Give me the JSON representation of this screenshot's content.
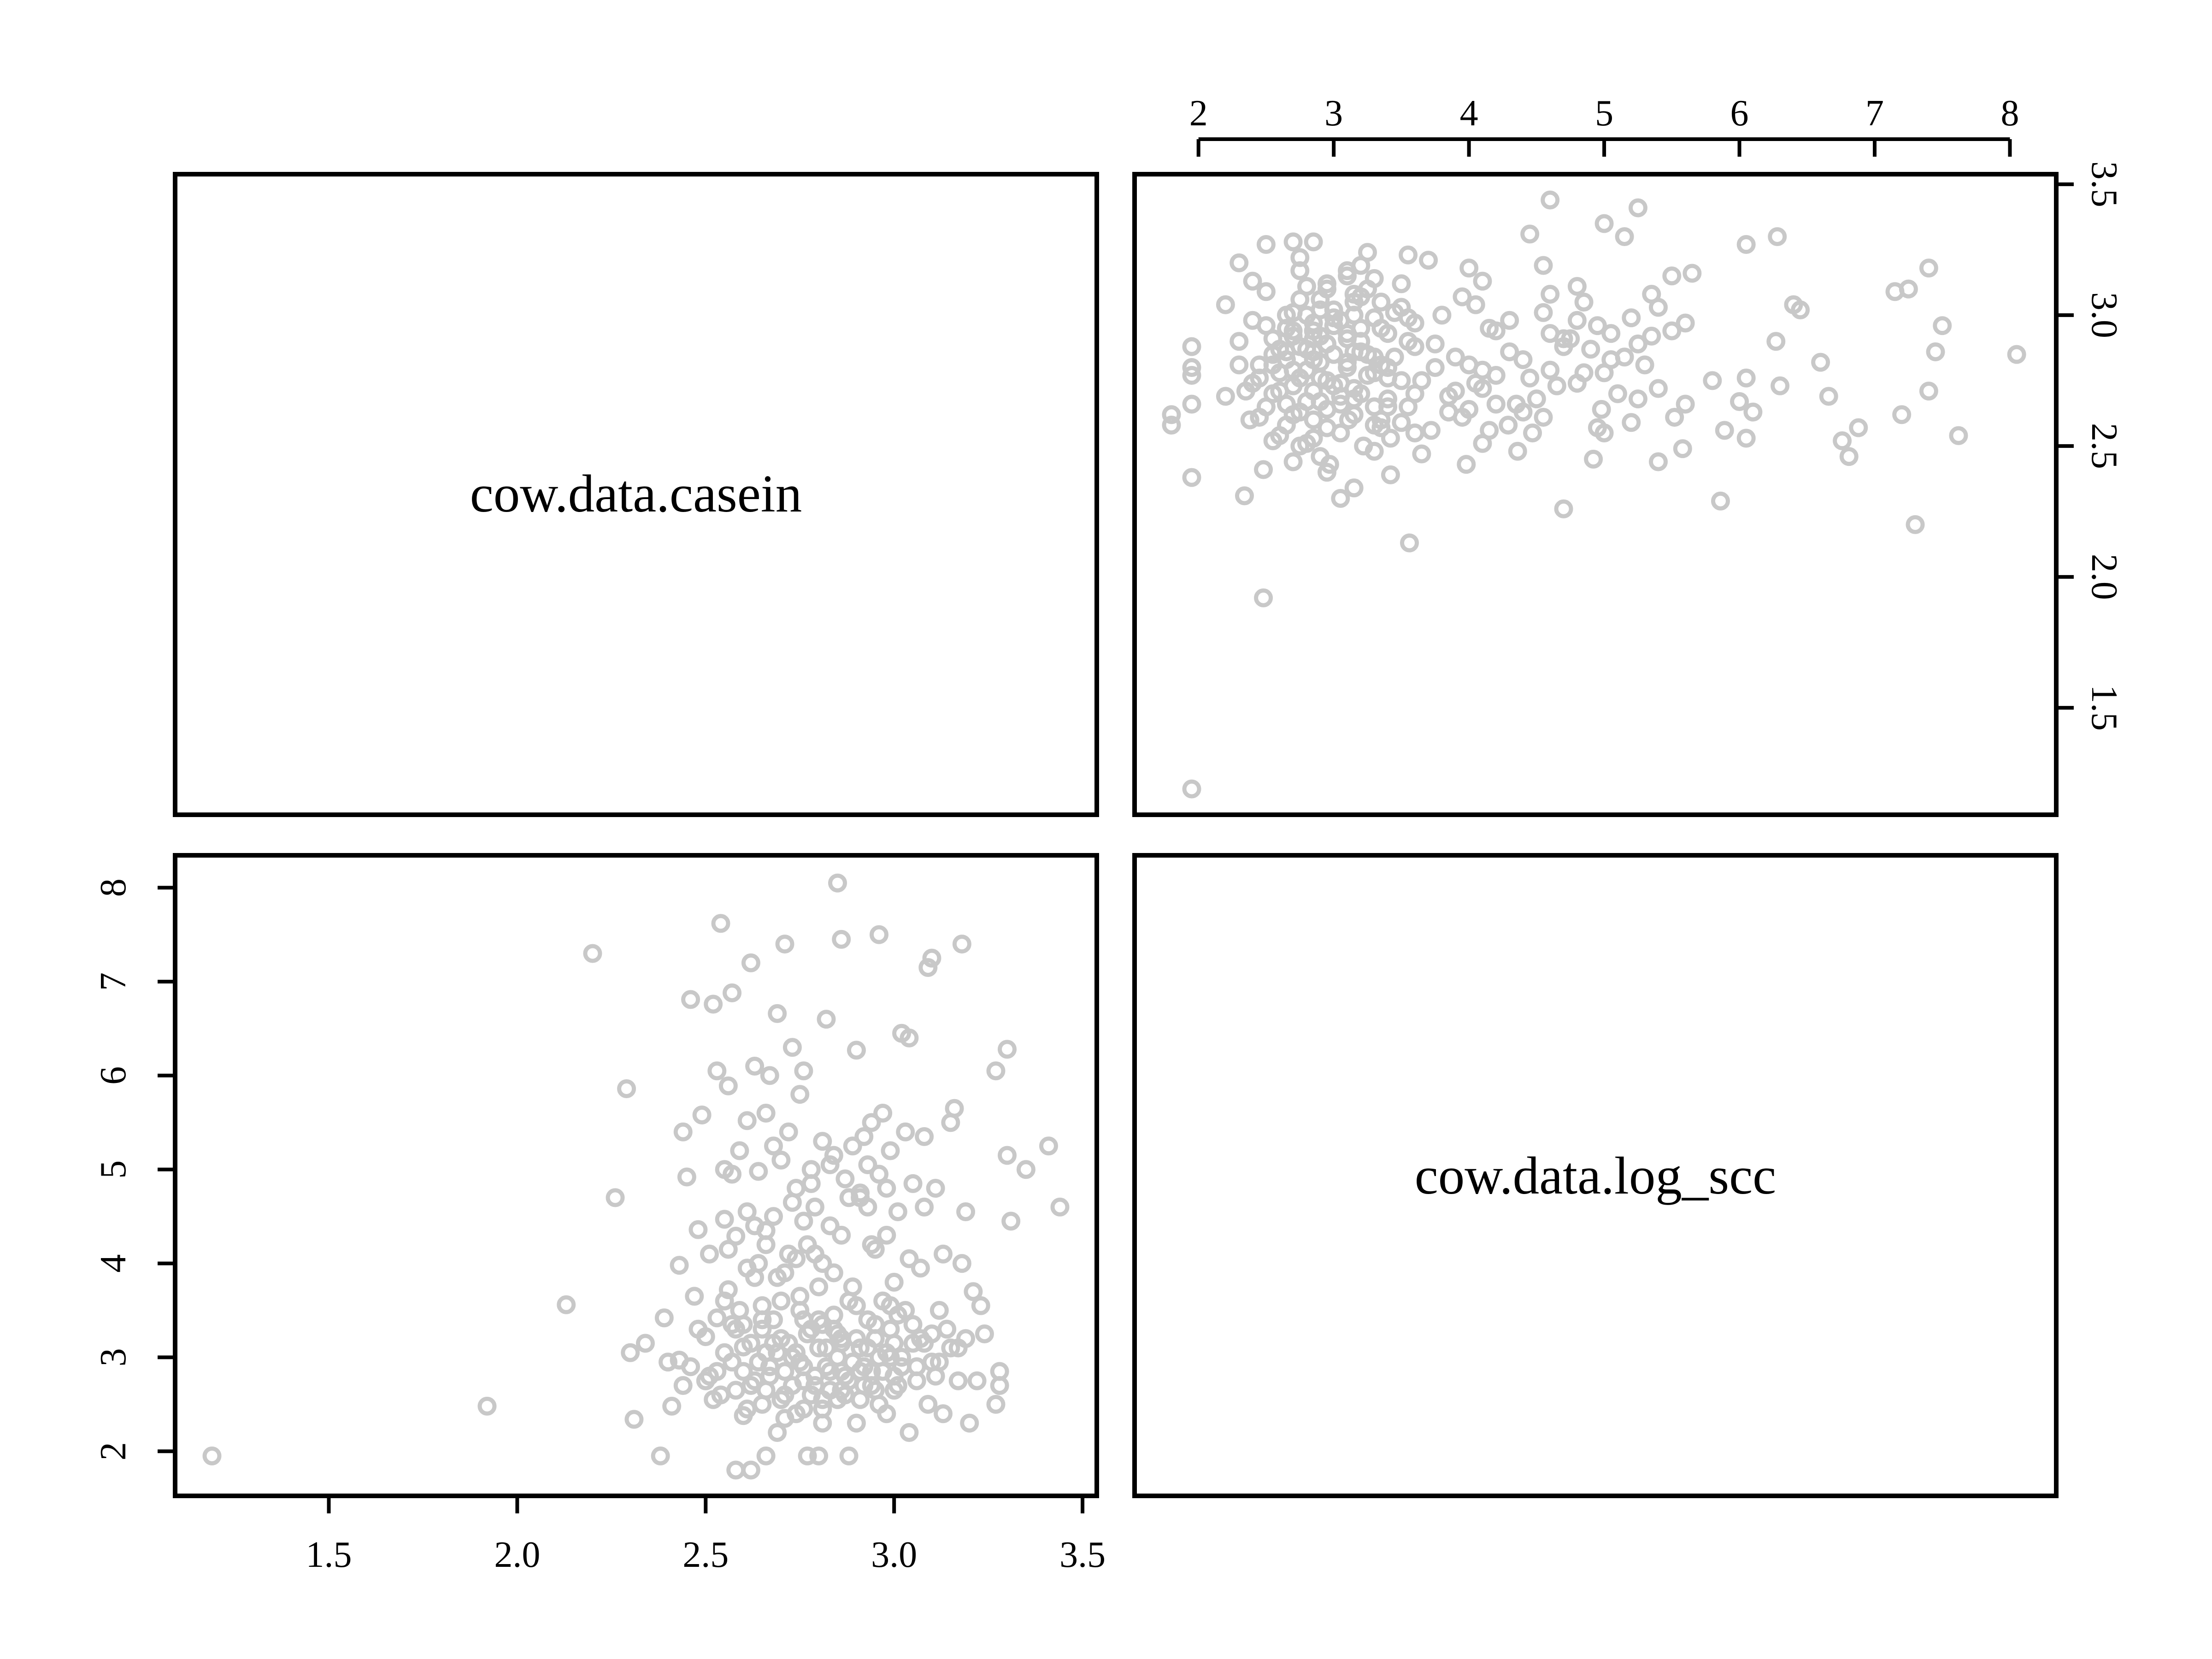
{
  "chart_data": {
    "type": "scatter",
    "variables": [
      "cow.data.casein",
      "cow.data.log_scc"
    ],
    "axis_ticks": {
      "cow.data.casein": [
        "1.5",
        "2.0",
        "2.5",
        "3.0",
        "3.5"
      ],
      "cow.data.log_scc": [
        "2",
        "3",
        "4",
        "5",
        "6",
        "7",
        "8"
      ]
    },
    "axis_ranges": {
      "cow.data.casein": [
        1.19,
        3.44
      ],
      "cow.data.log_scc": [
        1.8,
        8.07
      ]
    },
    "point_color": "#c8c8c8",
    "grid": false,
    "legend": "none",
    "points": [
      [
        1.19,
        1.95
      ],
      [
        1.92,
        2.48
      ],
      [
        2.13,
        3.56
      ],
      [
        2.2,
        7.3
      ],
      [
        2.26,
        4.7
      ],
      [
        2.29,
        5.86
      ],
      [
        2.3,
        3.05
      ],
      [
        2.31,
        2.34
      ],
      [
        2.34,
        3.15
      ],
      [
        2.38,
        1.95
      ],
      [
        2.39,
        3.42
      ],
      [
        2.41,
        2.48
      ],
      [
        2.43,
        2.97
      ],
      [
        2.43,
        3.98
      ],
      [
        2.44,
        5.4
      ],
      [
        2.45,
        4.92
      ],
      [
        2.46,
        6.81
      ],
      [
        2.47,
        3.65
      ],
      [
        2.48,
        4.36
      ],
      [
        2.49,
        5.58
      ],
      [
        2.5,
        3.22
      ],
      [
        2.51,
        2.8
      ],
      [
        2.51,
        4.1
      ],
      [
        2.52,
        6.76
      ],
      [
        2.53,
        3.42
      ],
      [
        2.53,
        6.05
      ],
      [
        2.54,
        2.6
      ],
      [
        2.54,
        7.62
      ],
      [
        2.55,
        4.47
      ],
      [
        2.55,
        5.0
      ],
      [
        2.56,
        3.72
      ],
      [
        2.56,
        5.89
      ],
      [
        2.57,
        2.95
      ],
      [
        2.57,
        6.88
      ],
      [
        2.58,
        1.8
      ],
      [
        2.58,
        3.3
      ],
      [
        2.58,
        4.29
      ],
      [
        2.59,
        5.2
      ],
      [
        2.6,
        2.38
      ],
      [
        2.6,
        3.11
      ],
      [
        2.61,
        4.55
      ],
      [
        2.61,
        5.52
      ],
      [
        2.62,
        1.8
      ],
      [
        2.62,
        2.7
      ],
      [
        2.62,
        7.2
      ],
      [
        2.63,
        3.85
      ],
      [
        2.63,
        6.1
      ],
      [
        2.64,
        2.95
      ],
      [
        2.64,
        4.98
      ],
      [
        2.65,
        2.5
      ],
      [
        2.65,
        3.4
      ],
      [
        2.66,
        1.95
      ],
      [
        2.66,
        4.2
      ],
      [
        2.66,
        5.6
      ],
      [
        2.67,
        2.8
      ],
      [
        2.67,
        6.0
      ],
      [
        2.68,
        3.15
      ],
      [
        2.68,
        4.5
      ],
      [
        2.69,
        2.2
      ],
      [
        2.69,
        6.66
      ],
      [
        2.7,
        3.6
      ],
      [
        2.7,
        5.1
      ],
      [
        2.71,
        2.6
      ],
      [
        2.71,
        7.4
      ],
      [
        2.72,
        4.1
      ],
      [
        2.72,
        5.4
      ],
      [
        2.73,
        3.0
      ],
      [
        2.73,
        6.3
      ],
      [
        2.74,
        2.4
      ],
      [
        2.74,
        4.8
      ],
      [
        2.75,
        3.5
      ],
      [
        2.75,
        5.8
      ],
      [
        2.76,
        2.9
      ],
      [
        2.76,
        6.05
      ],
      [
        2.77,
        1.95
      ],
      [
        2.77,
        4.2
      ],
      [
        2.78,
        3.3
      ],
      [
        2.78,
        5.0
      ],
      [
        2.79,
        2.7
      ],
      [
        2.79,
        4.6
      ],
      [
        2.8,
        1.95
      ],
      [
        2.8,
        3.75
      ],
      [
        2.81,
        2.3
      ],
      [
        2.81,
        5.3
      ],
      [
        2.82,
        3.1
      ],
      [
        2.82,
        6.6
      ],
      [
        2.83,
        2.65
      ],
      [
        2.83,
        4.4
      ],
      [
        2.84,
        3.45
      ],
      [
        2.84,
        5.15
      ],
      [
        2.85,
        2.55
      ],
      [
        2.85,
        8.05
      ],
      [
        2.86,
        3.2
      ],
      [
        2.86,
        7.45
      ],
      [
        2.87,
        2.8
      ],
      [
        2.87,
        4.9
      ],
      [
        2.88,
        1.95
      ],
      [
        2.88,
        3.6
      ],
      [
        2.89,
        2.95
      ],
      [
        2.89,
        5.25
      ],
      [
        2.9,
        2.3
      ],
      [
        2.9,
        6.27
      ],
      [
        2.91,
        3.1
      ],
      [
        2.91,
        4.7
      ],
      [
        2.92,
        2.7
      ],
      [
        2.92,
        5.35
      ],
      [
        2.93,
        3.4
      ],
      [
        2.93,
        4.6
      ],
      [
        2.94,
        2.85
      ],
      [
        2.94,
        5.5
      ],
      [
        2.95,
        3.2
      ],
      [
        2.95,
        4.15
      ],
      [
        2.96,
        2.5
      ],
      [
        2.96,
        7.5
      ],
      [
        2.97,
        3.6
      ],
      [
        2.97,
        5.6
      ],
      [
        2.98,
        2.4
      ],
      [
        2.98,
        4.3
      ],
      [
        2.99,
        3.0
      ],
      [
        2.99,
        5.2
      ],
      [
        3.0,
        2.65
      ],
      [
        3.0,
        3.8
      ],
      [
        3.01,
        4.55
      ],
      [
        3.02,
        2.9
      ],
      [
        3.02,
        6.45
      ],
      [
        3.03,
        3.5
      ],
      [
        3.03,
        5.4
      ],
      [
        3.04,
        2.2
      ],
      [
        3.04,
        6.4
      ],
      [
        3.05,
        3.15
      ],
      [
        3.05,
        4.85
      ],
      [
        3.06,
        2.75
      ],
      [
        3.07,
        3.95
      ],
      [
        3.08,
        4.6
      ],
      [
        3.08,
        5.35
      ],
      [
        3.09,
        2.5
      ],
      [
        3.09,
        7.15
      ],
      [
        3.1,
        3.25
      ],
      [
        3.1,
        7.25
      ],
      [
        3.11,
        2.8
      ],
      [
        3.11,
        4.8
      ],
      [
        3.12,
        3.5
      ],
      [
        3.13,
        2.4
      ],
      [
        3.13,
        4.1
      ],
      [
        3.15,
        3.1
      ],
      [
        3.15,
        5.5
      ],
      [
        3.16,
        5.65
      ],
      [
        3.17,
        2.75
      ],
      [
        3.18,
        4.0
      ],
      [
        3.18,
        7.4
      ],
      [
        3.19,
        3.2
      ],
      [
        3.19,
        4.55
      ],
      [
        3.2,
        2.3
      ],
      [
        3.21,
        3.7
      ],
      [
        3.22,
        2.75
      ],
      [
        3.23,
        3.55
      ],
      [
        3.24,
        3.25
      ],
      [
        3.27,
        6.05
      ],
      [
        3.27,
        2.5
      ],
      [
        3.28,
        2.85
      ],
      [
        3.28,
        2.7
      ],
      [
        3.3,
        6.28
      ],
      [
        3.3,
        5.15
      ],
      [
        3.31,
        4.45
      ],
      [
        3.35,
        5.0
      ],
      [
        3.41,
        5.25
      ],
      [
        3.44,
        4.6
      ],
      [
        2.5,
        2.75
      ],
      [
        2.55,
        3.05
      ],
      [
        2.6,
        2.85
      ],
      [
        2.65,
        3.3
      ],
      [
        2.7,
        2.55
      ],
      [
        2.72,
        3.15
      ],
      [
        2.75,
        2.95
      ],
      [
        2.78,
        2.6
      ],
      [
        2.8,
        3.1
      ],
      [
        2.83,
        2.85
      ],
      [
        2.85,
        3.0
      ],
      [
        2.88,
        2.75
      ],
      [
        2.9,
        3.2
      ],
      [
        2.92,
        2.9
      ],
      [
        2.95,
        2.65
      ],
      [
        2.98,
        3.05
      ],
      [
        3.0,
        2.8
      ],
      [
        3.05,
        3.35
      ],
      [
        2.58,
        2.65
      ],
      [
        2.62,
        3.15
      ],
      [
        2.67,
        2.9
      ],
      [
        2.73,
        2.7
      ],
      [
        2.77,
        3.25
      ],
      [
        2.82,
        2.9
      ],
      [
        2.87,
        2.6
      ],
      [
        2.93,
        3.1
      ],
      [
        2.97,
        2.85
      ],
      [
        3.02,
        3.0
      ],
      [
        2.68,
        3.4
      ],
      [
        2.74,
        3.05
      ],
      [
        2.79,
        2.8
      ],
      [
        2.84,
        3.3
      ],
      [
        2.89,
        2.95
      ],
      [
        2.94,
        2.7
      ],
      [
        2.99,
        3.3
      ],
      [
        3.06,
        2.9
      ],
      [
        2.46,
        2.9
      ],
      [
        2.52,
        2.55
      ],
      [
        2.57,
        3.35
      ],
      [
        2.63,
        2.75
      ],
      [
        2.69,
        3.05
      ],
      [
        2.76,
        2.45
      ],
      [
        2.81,
        3.35
      ],
      [
        2.86,
        2.85
      ],
      [
        2.91,
        2.55
      ],
      [
        2.96,
        3.0
      ],
      [
        3.01,
        2.7
      ],
      [
        3.08,
        3.15
      ],
      [
        3.12,
        2.95
      ],
      [
        3.14,
        3.3
      ],
      [
        3.17,
        3.1
      ],
      [
        2.44,
        2.7
      ],
      [
        2.4,
        2.95
      ],
      [
        2.48,
        3.3
      ],
      [
        2.53,
        2.85
      ],
      [
        2.59,
        3.5
      ],
      [
        2.64,
        4.0
      ],
      [
        2.69,
        3.85
      ],
      [
        2.74,
        4.05
      ],
      [
        2.79,
        4.1
      ],
      [
        2.84,
        3.9
      ],
      [
        2.89,
        3.75
      ],
      [
        2.94,
        4.2
      ],
      [
        2.99,
        3.55
      ],
      [
        3.04,
        4.05
      ],
      [
        2.56,
        4.15
      ],
      [
        2.61,
        3.95
      ],
      [
        2.66,
        4.35
      ],
      [
        2.71,
        3.9
      ],
      [
        2.76,
        4.45
      ],
      [
        2.81,
        4.0
      ],
      [
        2.86,
        4.3
      ],
      [
        2.91,
        4.75
      ],
      [
        2.96,
        4.95
      ],
      [
        3.01,
        3.45
      ],
      [
        2.57,
        4.95
      ],
      [
        2.63,
        4.4
      ],
      [
        2.68,
        5.25
      ],
      [
        2.73,
        4.65
      ],
      [
        2.78,
        4.85
      ],
      [
        2.83,
        5.05
      ],
      [
        2.88,
        4.7
      ],
      [
        2.93,
        5.05
      ],
      [
        2.98,
        4.8
      ],
      [
        2.66,
        3.05
      ],
      [
        2.71,
        2.85
      ],
      [
        2.76,
        3.4
      ],
      [
        2.81,
        2.55
      ],
      [
        2.86,
        3.15
      ],
      [
        2.91,
        2.85
      ],
      [
        2.61,
        2.45
      ],
      [
        2.66,
        2.65
      ],
      [
        2.71,
        2.35
      ],
      [
        2.76,
        2.75
      ],
      [
        2.81,
        2.45
      ],
      [
        2.86,
        2.65
      ],
      [
        2.55,
        3.6
      ],
      [
        2.6,
        3.35
      ],
      [
        2.65,
        3.55
      ],
      [
        2.7,
        3.2
      ],
      [
        2.75,
        3.65
      ],
      [
        2.8,
        3.4
      ],
      [
        2.85,
        3.25
      ],
      [
        2.9,
        3.55
      ],
      [
        2.95,
        3.35
      ],
      [
        3.0,
        3.15
      ],
      [
        3.07,
        3.2
      ],
      [
        3.1,
        2.95
      ]
    ]
  }
}
